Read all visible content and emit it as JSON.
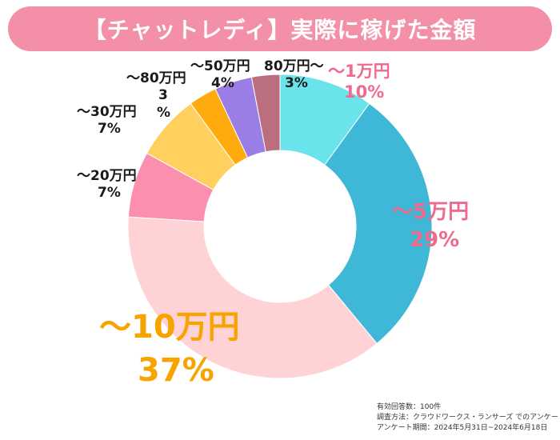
{
  "title": "【チャットレディ】実際に稼げた金額",
  "colors": {
    "title_bar": "#f48fa8",
    "title_text": "#ffffff"
  },
  "chart_data": {
    "type": "pie",
    "variant": "donut",
    "title": "【チャットレディ】実際に稼げた金額",
    "start": "top, clockwise",
    "categories": [
      "～1万円",
      "～5万円",
      "～10万円",
      "～20万円",
      "～30万円",
      "～50万円",
      "～80万円",
      "80万円～"
    ],
    "values": [
      10,
      29,
      37,
      7,
      7,
      4,
      3,
      3
    ],
    "slice_order_clockwise_from_top": [
      "～1万円",
      "～5万円",
      "～10万円",
      "～20万円",
      "～30万円",
      "～80万円",
      "～50万円",
      "80万円～"
    ],
    "colors": {
      "～1万円": "#6ae3ea",
      "～5万円": "#3fb7d6",
      "～10万円": "#ffd3d6",
      "～20万円": "#fb8fad",
      "～30万円": "#ffd05e",
      "～80万円": "#ffab0d",
      "～50万円": "#9b7de6",
      "80万円～": "#bb6f7e"
    },
    "labels": {
      "l1": {
        "name": "～1万円",
        "pct": "10%"
      },
      "l5": {
        "name": "～5万円",
        "pct": "29%"
      },
      "l10": {
        "name": "～10万円",
        "pct": "37%"
      },
      "l20": {
        "name": "～20万円",
        "pct": "7%"
      },
      "l30": {
        "name": "～30万円",
        "pct": "7%"
      },
      "l80": {
        "name": "～80万円",
        "pct_a": "3",
        "pct_b": "%"
      },
      "l50": {
        "name": "～50万円",
        "pct": "4%"
      },
      "l80p": {
        "name": "80万円～",
        "pct": "3%"
      }
    }
  },
  "label_colors": {
    "dark": "#1a1a1a",
    "pink": "#ee6a8e",
    "orange": "#f7a400"
  },
  "notes": {
    "respondents": "有効回答数：100件",
    "method": "調査方法：クラウドワークス・ランサーズ でのアンケート",
    "period": "アンケート期間：2024年5月31日~2024年6月18日"
  }
}
